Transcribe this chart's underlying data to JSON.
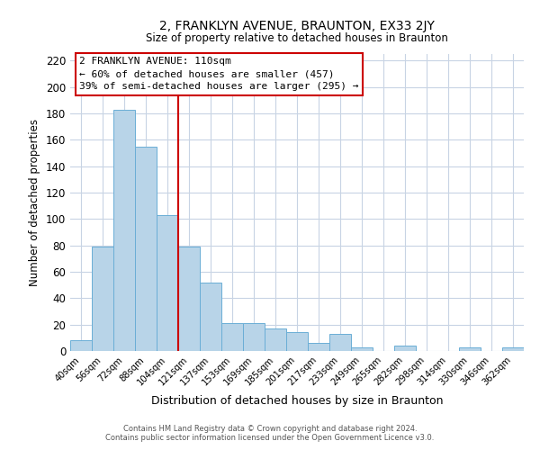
{
  "title": "2, FRANKLYN AVENUE, BRAUNTON, EX33 2JY",
  "subtitle": "Size of property relative to detached houses in Braunton",
  "xlabel": "Distribution of detached houses by size in Braunton",
  "ylabel": "Number of detached properties",
  "bar_labels": [
    "40sqm",
    "56sqm",
    "72sqm",
    "88sqm",
    "104sqm",
    "121sqm",
    "137sqm",
    "153sqm",
    "169sqm",
    "185sqm",
    "201sqm",
    "217sqm",
    "233sqm",
    "249sqm",
    "265sqm",
    "282sqm",
    "298sqm",
    "314sqm",
    "330sqm",
    "346sqm",
    "362sqm"
  ],
  "bar_values": [
    8,
    79,
    183,
    155,
    103,
    79,
    52,
    21,
    21,
    17,
    14,
    6,
    13,
    3,
    0,
    4,
    0,
    0,
    3,
    0,
    3
  ],
  "bar_color": "#b8d4e8",
  "bar_edge_color": "#6aaed6",
  "ylim": [
    0,
    225
  ],
  "yticks": [
    0,
    20,
    40,
    60,
    80,
    100,
    120,
    140,
    160,
    180,
    200,
    220
  ],
  "vline_color": "#cc0000",
  "annotation_title": "2 FRANKLYN AVENUE: 110sqm",
  "annotation_line1": "← 60% of detached houses are smaller (457)",
  "annotation_line2": "39% of semi-detached houses are larger (295) →",
  "annotation_box_color": "#ffffff",
  "annotation_box_edge": "#cc0000",
  "footer1": "Contains HM Land Registry data © Crown copyright and database right 2024.",
  "footer2": "Contains public sector information licensed under the Open Government Licence v3.0.",
  "background_color": "#ffffff",
  "grid_color": "#c8d4e4"
}
